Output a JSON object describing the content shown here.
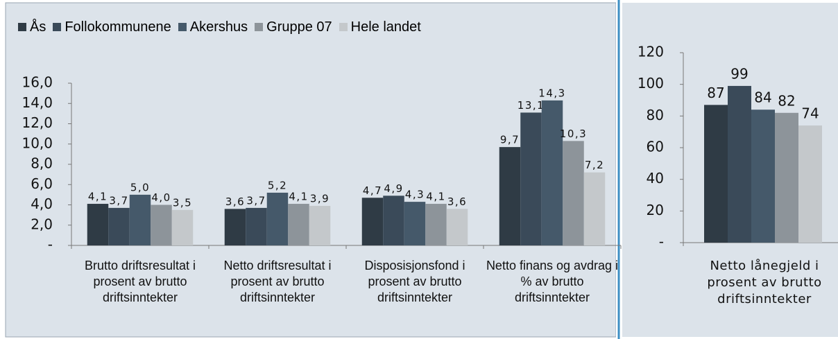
{
  "chart_data": [
    {
      "type": "bar",
      "categories": [
        "Brutto driftsresultat i prosent av brutto driftsinntekter",
        "Netto driftsresultat i prosent av brutto driftsinntekter",
        "Disposisjonsfond i prosent av brutto driftsinntekter",
        "Netto finans og avdrag i % av brutto driftsinntekter"
      ],
      "series": [
        {
          "name": "Ås",
          "color": "#2f3b45",
          "values": [
            4.1,
            3.6,
            4.7,
            9.7
          ],
          "value_labels": [
            "4,1",
            "3,6",
            "4,7",
            "9,7"
          ]
        },
        {
          "name": "Follokommunene",
          "color": "#3a4a59",
          "values": [
            3.7,
            3.7,
            4.9,
            13.1
          ],
          "value_labels": [
            "3,7",
            "3,7",
            "4,9",
            "13,1"
          ]
        },
        {
          "name": "Akershus",
          "color": "#45596a",
          "values": [
            5.0,
            5.2,
            4.3,
            14.3
          ],
          "value_labels": [
            "5,0",
            "5,2",
            "4,3",
            "14,3"
          ]
        },
        {
          "name": "Gruppe 07",
          "color": "#8d949a",
          "values": [
            4.0,
            4.1,
            4.1,
            10.3
          ],
          "value_labels": [
            "4,0",
            "4,1",
            "4,1",
            "10,3"
          ]
        },
        {
          "name": "Hele landet",
          "color": "#c4c8cb",
          "values": [
            3.5,
            3.9,
            3.6,
            7.2
          ],
          "value_labels": [
            "3,5",
            "3,9",
            "3,6",
            "7,2"
          ]
        }
      ],
      "ylim": [
        0,
        16
      ],
      "yticks": [
        {
          "value": 0,
          "label": "-"
        },
        {
          "value": 2,
          "label": "2,0"
        },
        {
          "value": 4,
          "label": "4,0"
        },
        {
          "value": 6,
          "label": "6,0"
        },
        {
          "value": 8,
          "label": "8,0"
        },
        {
          "value": 10,
          "label": "10,0"
        },
        {
          "value": 12,
          "label": "12,0"
        },
        {
          "value": 14,
          "label": "14,0"
        },
        {
          "value": 16,
          "label": "16,0"
        }
      ],
      "legend": "top"
    },
    {
      "type": "bar",
      "categories": [
        "Netto lånegjeld i prosent av brutto driftsinntekter"
      ],
      "series": [
        {
          "name": "Ås",
          "color": "#2f3b45",
          "values": [
            87
          ]
        },
        {
          "name": "Follokommunene",
          "color": "#3a4a59",
          "values": [
            99
          ]
        },
        {
          "name": "Akershus",
          "color": "#45596a",
          "values": [
            84
          ]
        },
        {
          "name": "Gruppe 07",
          "color": "#8d949a",
          "values": [
            82
          ]
        },
        {
          "name": "Hele landet",
          "color": "#c4c8cb",
          "values": [
            74
          ]
        }
      ],
      "ylim": [
        0,
        120
      ],
      "yticks": [
        {
          "value": 0,
          "label": "-"
        },
        20,
        40,
        60,
        80,
        100,
        120
      ]
    }
  ]
}
